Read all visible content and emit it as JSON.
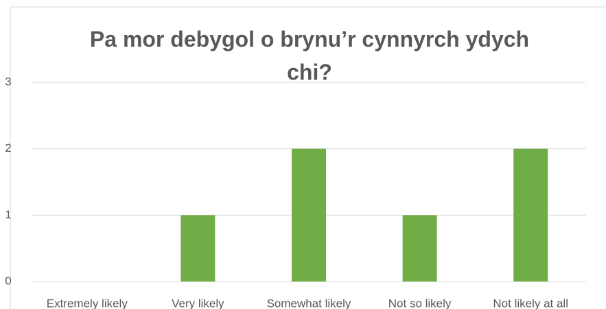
{
  "chart_data": {
    "type": "bar",
    "title": "Pa mor debygol o brynu’r cynnyrch ydych chi?",
    "categories": [
      "Extremely likely",
      "Very likely",
      "Somewhat likely",
      "Not so likely",
      "Not likely at all"
    ],
    "values": [
      0,
      1,
      2,
      1,
      2
    ],
    "color": "#70ad47",
    "ylim": [
      0,
      3
    ],
    "yticks": [
      0,
      1,
      2,
      3
    ],
    "grid": true
  }
}
